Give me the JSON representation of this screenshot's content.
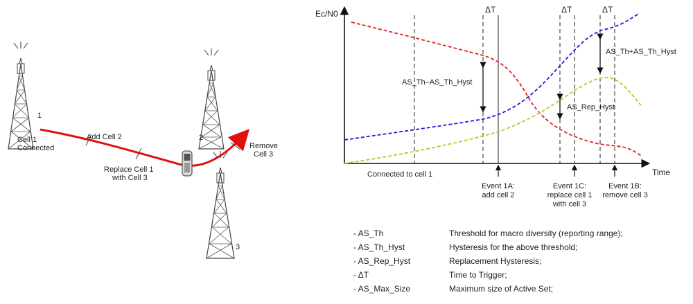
{
  "left_scene": {
    "cells": [
      {
        "number": "1"
      },
      {
        "number": "2"
      },
      {
        "number": "3"
      }
    ],
    "path_labels": {
      "cell1_connected_line1": "Cell 1",
      "cell1_connected_line2": "Connected",
      "add_cell": "Add Cell 2",
      "replace_line1": "Replace Cell 1",
      "replace_line2": "with Cell 3",
      "remove_line1": "Remove",
      "remove_line2": "Cell 3"
    },
    "colors": {
      "path": "#e01010"
    }
  },
  "diagram": {
    "y_axis_label": "Ec/N0",
    "x_axis_label": "Time",
    "delta_t": "ΔT",
    "delta_t_labels": [
      "ΔT",
      "ΔT",
      "ΔT"
    ],
    "annotations": {
      "th_minus_hyst": "AS_Th–AS_Th_Hyst",
      "rep_hyst": "AS_Rep_Hyst",
      "th_plus_hyst": "AS_Th+AS_Th_Hyst",
      "connected": "Connected to cell 1"
    },
    "events": [
      {
        "line1": "Event 1A:",
        "line2": "add cell 2"
      },
      {
        "line1": "Event 1C:",
        "line2": "replace cell 1",
        "line3": "with cell 3"
      },
      {
        "line1": "Event 1B:",
        "line2": "remove cell 3"
      }
    ],
    "colors": {
      "cell1": "#e02020",
      "cell2": "#1a1ae0",
      "cell3": "#a8d020"
    }
  },
  "legend": [
    {
      "term": "-   AS_Th",
      "desc": "Threshold for macro diversity (reporting range);"
    },
    {
      "term": "-   AS_Th_Hyst",
      "desc": "Hysteresis for the above threshold;"
    },
    {
      "term": "-   AS_Rep_Hyst",
      "desc": "Replacement Hysteresis;"
    },
    {
      "term": "-   ΔT",
      "desc": "Time to Trigger;"
    },
    {
      "term": "-   AS_Max_Size",
      "desc": "Maximum size of Active Set;"
    }
  ]
}
